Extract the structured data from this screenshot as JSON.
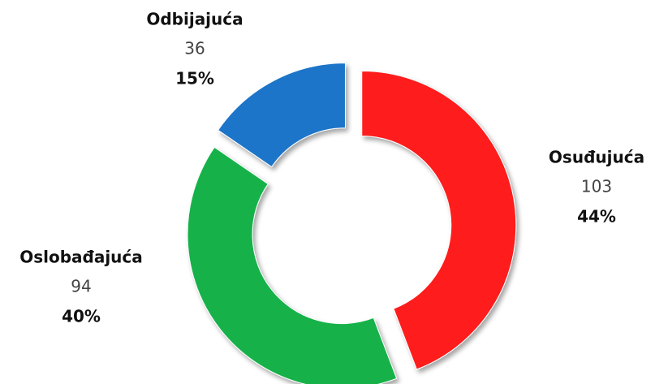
{
  "chart_data": {
    "type": "donut",
    "categories": [
      "Osuđujuća",
      "Oslobađajuća",
      "Odbijajuća"
    ],
    "values": [
      103,
      94,
      36
    ],
    "percent_values": [
      44,
      40,
      15
    ],
    "percent_labels": [
      "44%",
      "40%",
      "15%"
    ],
    "colors": [
      "#ff1a1a",
      "#13b24a",
      "#1a74c8"
    ]
  }
}
